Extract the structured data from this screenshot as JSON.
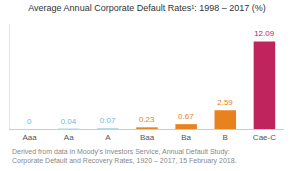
{
  "chart_data": {
    "type": "bar",
    "title": "Average Annual Corporate Default Rates¹: 1998 – 2017 (%)",
    "annotations": [
      "Derived from data in Moody’s Investors Service, Annual Default Study:",
      "Corporate Default and Recovery Rates, 1920 – 2017, 15 February 2018."
    ],
    "categories": [
      "Aaa",
      "Aa",
      "A",
      "Baa",
      "Ba",
      "B",
      "Cae-C"
    ],
    "values": [
      0,
      0.04,
      0.07,
      0.23,
      0.67,
      2.59,
      12.09
    ],
    "colors": [
      "#6bbdd6",
      "#6bbdd6",
      "#6bbdd6",
      "#e8821e",
      "#e8821e",
      "#e8821e",
      "#c0245c"
    ],
    "data_labels": true,
    "ylim": [
      0,
      14.5
    ],
    "tick_labels": "x",
    "grid": false
  }
}
